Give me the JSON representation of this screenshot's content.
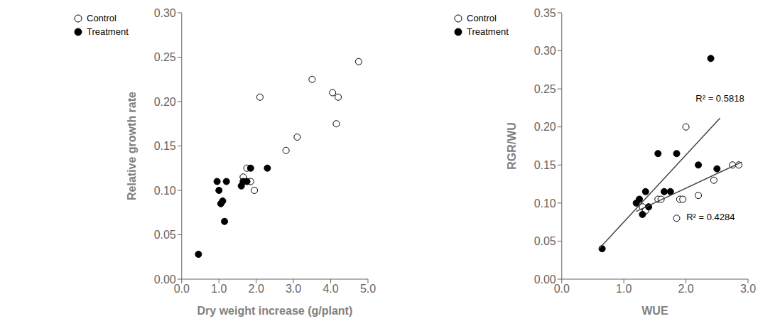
{
  "chart_data": [
    {
      "type": "scatter",
      "xlabel": "Dry weight increase (g/plant)",
      "ylabel": "Relative growth rate",
      "xlim": [
        0.0,
        5.0
      ],
      "ylim": [
        0.0,
        0.3
      ],
      "xticks": [
        {
          "value": 0.0,
          "label": "0.0"
        },
        {
          "value": 1.0,
          "label": "1.0"
        },
        {
          "value": 2.0,
          "label": "2.0"
        },
        {
          "value": 3.0,
          "label": "3.0"
        },
        {
          "value": 4.0,
          "label": "4.0"
        },
        {
          "value": 5.0,
          "label": "5.0"
        }
      ],
      "yticks": [
        {
          "value": 0.0,
          "label": "0.00"
        },
        {
          "value": 0.05,
          "label": "0.05"
        },
        {
          "value": 0.1,
          "label": "0.10"
        },
        {
          "value": 0.15,
          "label": "0.15"
        },
        {
          "value": 0.2,
          "label": "0.20"
        },
        {
          "value": 0.25,
          "label": "0.25"
        },
        {
          "value": 0.3,
          "label": "0.30"
        }
      ],
      "grid": false,
      "legend": "upper left",
      "series": [
        {
          "name": "Control",
          "color": "white",
          "x": [
            1.65,
            1.75,
            1.85,
            1.95,
            2.1,
            2.8,
            3.1,
            3.5,
            4.05,
            4.15,
            4.2,
            4.75
          ],
          "values": [
            0.115,
            0.125,
            0.11,
            0.1,
            0.205,
            0.145,
            0.16,
            0.225,
            0.21,
            0.175,
            0.205,
            0.245
          ]
        },
        {
          "name": "Treatment",
          "color": "black",
          "x": [
            0.45,
            0.95,
            1.0,
            1.05,
            1.1,
            1.15,
            1.2,
            1.6,
            1.65,
            1.75,
            1.85,
            2.3
          ],
          "values": [
            0.028,
            0.11,
            0.1,
            0.085,
            0.088,
            0.065,
            0.11,
            0.105,
            0.11,
            0.11,
            0.125,
            0.125
          ]
        }
      ],
      "annotations": []
    },
    {
      "type": "scatter",
      "xlabel": "WUE",
      "ylabel": "RGR/WU",
      "xlim": [
        0.0,
        3.0
      ],
      "ylim": [
        0.0,
        0.35
      ],
      "xticks": [
        {
          "value": 0.0,
          "label": "0.0"
        },
        {
          "value": 1.0,
          "label": "1.0"
        },
        {
          "value": 2.0,
          "label": "2.0"
        },
        {
          "value": 3.0,
          "label": "3.0"
        }
      ],
      "yticks": [
        {
          "value": 0.0,
          "label": "0.00"
        },
        {
          "value": 0.05,
          "label": "0.05"
        },
        {
          "value": 0.1,
          "label": "0.10"
        },
        {
          "value": 0.15,
          "label": "0.15"
        },
        {
          "value": 0.2,
          "label": "0.20"
        },
        {
          "value": 0.25,
          "label": "0.25"
        },
        {
          "value": 0.3,
          "label": "0.30"
        },
        {
          "value": 0.35,
          "label": "0.35"
        }
      ],
      "grid": false,
      "legend": "upper left",
      "series": [
        {
          "name": "Control",
          "color": "white",
          "x": [
            1.3,
            1.35,
            1.55,
            1.6,
            1.85,
            1.9,
            1.95,
            2.0,
            2.2,
            2.45,
            2.75,
            2.85
          ],
          "values": [
            0.095,
            0.09,
            0.105,
            0.105,
            0.08,
            0.105,
            0.105,
            0.2,
            0.11,
            0.13,
            0.15,
            0.15
          ]
        },
        {
          "name": "Treatment",
          "color": "black",
          "x": [
            0.65,
            1.2,
            1.25,
            1.3,
            1.35,
            1.4,
            1.55,
            1.65,
            1.75,
            1.85,
            2.2,
            2.4,
            2.5
          ],
          "values": [
            0.04,
            0.1,
            0.105,
            0.085,
            0.115,
            0.095,
            0.165,
            0.115,
            0.115,
            0.165,
            0.15,
            0.29,
            0.145
          ]
        },
        {
          "type": "line",
          "color": "#444444",
          "x": [
            1.2,
            2.9
          ],
          "values": [
            0.089,
            0.1539
          ]
        },
        {
          "type": "line",
          "color": "#444444",
          "x": [
            0.6,
            2.55
          ],
          "values": [
            0.0399,
            0.2116
          ]
        }
      ],
      "annotations": [
        {
          "text": "R² = 0.5818",
          "x": 2.1,
          "y": 0.238
        },
        {
          "text": "R² = 0.4284",
          "x": 1.95,
          "y": 0.082
        }
      ]
    }
  ]
}
